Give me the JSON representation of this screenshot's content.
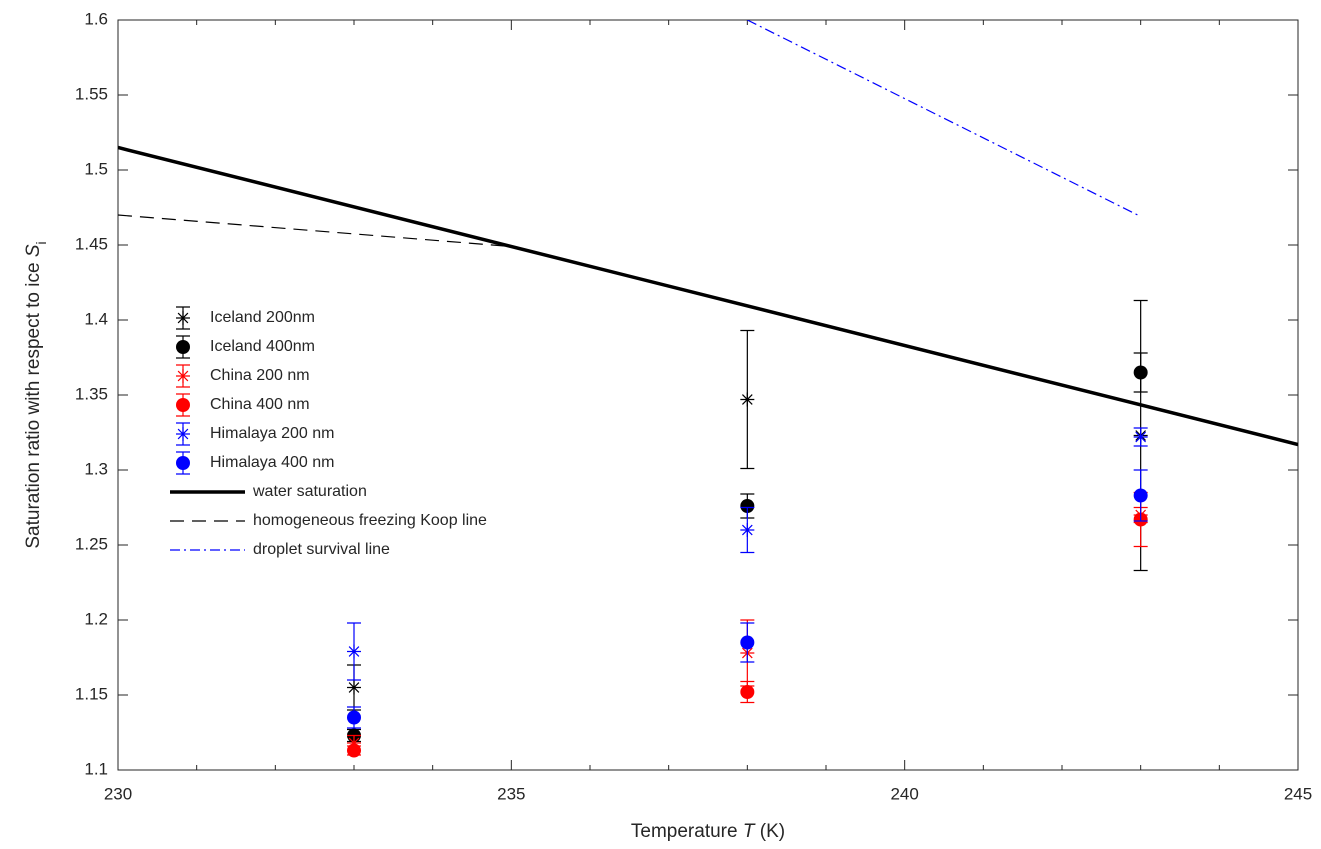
{
  "chart_data": {
    "type": "errorbar",
    "xlabel": "Temperature",
    "xlabel_symbol": "T",
    "xlabel_unit": "(K)",
    "ylabel": "Saturation ratio with respect to ice",
    "ylabel_symbol": "S",
    "ylabel_subscript": "i",
    "xlim": [
      230,
      245
    ],
    "xticks": [
      230,
      235,
      240,
      245
    ],
    "xminorticks": [
      231,
      232,
      233,
      234,
      236,
      237,
      238,
      239,
      241,
      242,
      243,
      244
    ],
    "ylim": [
      1.1,
      1.6
    ],
    "yticks": [
      1.1,
      1.15,
      1.2,
      1.25,
      1.3,
      1.35,
      1.4,
      1.45,
      1.5,
      1.55,
      1.6
    ],
    "grid": false,
    "legend": "west",
    "series": [
      {
        "name": "Iceland 200nm",
        "color": "#000000",
        "marker": "star",
        "x": [
          233,
          238,
          243
        ],
        "values": [
          1.155,
          1.347,
          1.323
        ],
        "errors": [
          0.015,
          0.046,
          0.09
        ]
      },
      {
        "name": "Iceland 400nm",
        "color": "#000000",
        "marker": "circle",
        "x": [
          233,
          238,
          243
        ],
        "values": [
          1.123,
          1.276,
          1.365
        ],
        "errors": [
          0.004,
          0.008,
          0.013
        ]
      },
      {
        "name": "China 200 nm",
        "color": "#ff0000",
        "marker": "star",
        "x": [
          233,
          238,
          243
        ],
        "values": [
          1.118,
          1.178,
          1.27
        ],
        "errors": [
          0.005,
          0.022,
          0.005
        ]
      },
      {
        "name": "China 400 nm",
        "color": "#ff0000",
        "marker": "circle",
        "x": [
          233,
          238,
          243
        ],
        "values": [
          1.113,
          1.152,
          1.267
        ],
        "errors": [
          0.003,
          0.007,
          0.018
        ]
      },
      {
        "name": "Himalaya 200 nm",
        "color": "#0000ff",
        "marker": "star",
        "x": [
          233,
          238,
          243
        ],
        "values": [
          1.179,
          1.26,
          1.322
        ],
        "errors": [
          0.019,
          0.015,
          0.006
        ]
      },
      {
        "name": "Himalaya 400 nm",
        "color": "#0000ff",
        "marker": "circle",
        "x": [
          233,
          238,
          243
        ],
        "values": [
          1.135,
          1.185,
          1.283
        ],
        "errors": [
          0.007,
          0.013,
          0.017
        ]
      }
    ],
    "lines": [
      {
        "name": "water saturation",
        "color": "#000000",
        "style": "solid",
        "x": [
          230,
          245
        ],
        "values": [
          1.515,
          1.317
        ]
      },
      {
        "name": "homogeneous freezing Koop line",
        "color": "#000000",
        "style": "dashed",
        "x": [
          230,
          235
        ],
        "values": [
          1.47,
          1.449
        ]
      },
      {
        "name": "droplet survival line",
        "color": "#0000ff",
        "style": "dashdot",
        "x": [
          238,
          243
        ],
        "values": [
          1.6,
          1.469
        ]
      }
    ]
  }
}
